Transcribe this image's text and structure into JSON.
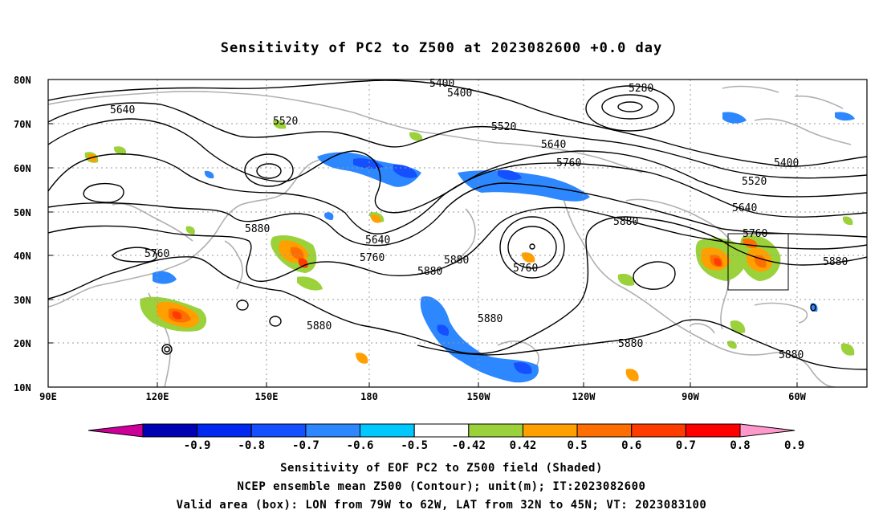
{
  "title": "Sensitivity of PC2 to Z500 at 2023082600 +0.0 day",
  "lat_ticks": [
    "80N",
    "70N",
    "60N",
    "50N",
    "40N",
    "30N",
    "20N",
    "10N"
  ],
  "lon_ticks": [
    "90E",
    "120E",
    "150E",
    "180",
    "150W",
    "120W",
    "90W",
    "60W"
  ],
  "colorbar": {
    "labels": [
      "-0.9",
      "-0.8",
      "-0.7",
      "-0.6",
      "-0.5",
      "-0.42",
      "0.42",
      "0.5",
      "0.6",
      "0.7",
      "0.8",
      "0.9"
    ],
    "colors": [
      "#cc0099",
      "#0000b4",
      "#0028f0",
      "#1450ff",
      "#2d87ff",
      "#00c8ff",
      "#ffffff",
      "#9bd23c",
      "#ffa000",
      "#ff6e00",
      "#ff3c00",
      "#ff0000",
      "#ff99cc"
    ]
  },
  "contour_labels": [
    {
      "id": "c5400a",
      "text": "5400"
    },
    {
      "id": "c5400b",
      "text": "5400"
    },
    {
      "id": "c5280",
      "text": "5280"
    },
    {
      "id": "c5640a",
      "text": "5640"
    },
    {
      "id": "c5520a",
      "text": "5520"
    },
    {
      "id": "c5520b",
      "text": "5520"
    },
    {
      "id": "c5640b",
      "text": "5640"
    },
    {
      "id": "c5760a",
      "text": "5760"
    },
    {
      "id": "c5400c",
      "text": "5400"
    },
    {
      "id": "c5520c",
      "text": "5520"
    },
    {
      "id": "c5640c",
      "text": "5640"
    },
    {
      "id": "c5880a",
      "text": "5880"
    },
    {
      "id": "c5640d",
      "text": "5640"
    },
    {
      "id": "c5760b",
      "text": "5760"
    },
    {
      "id": "c5880b",
      "text": "5880"
    },
    {
      "id": "c5880c",
      "text": "5880"
    },
    {
      "id": "c5760c",
      "text": "5760"
    },
    {
      "id": "c5880d",
      "text": "5880"
    },
    {
      "id": "c5760d",
      "text": "5760"
    },
    {
      "id": "c5760e",
      "text": "5760"
    },
    {
      "id": "c5880e",
      "text": "5880"
    },
    {
      "id": "c5880f",
      "text": "5880"
    },
    {
      "id": "c5880g",
      "text": "5880"
    },
    {
      "id": "c5880h",
      "text": "5880"
    },
    {
      "id": "c5880i",
      "text": "5880"
    }
  ],
  "footer": {
    "line1": "Sensitivity of EOF PC2 to Z500 field (Shaded)",
    "line2": "NCEP ensemble mean Z500 (Contour); unit(m); IT:2023082600",
    "line3": "Valid area (box): LON from 79W to 62W, LAT from 32N to 45N; VT: 2023083100"
  }
}
